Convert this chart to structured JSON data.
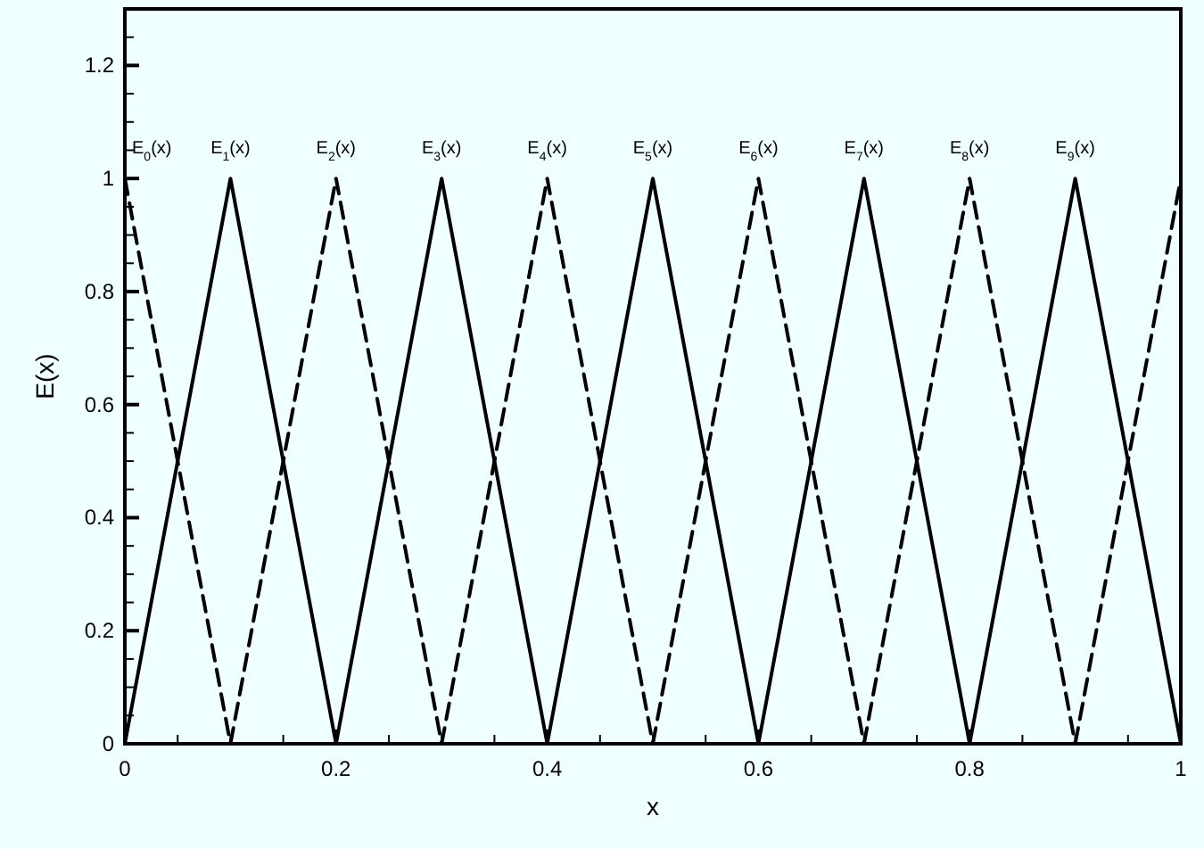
{
  "chart_data": {
    "type": "line",
    "xlabel": "x",
    "ylabel": "E(x)",
    "xlim": [
      0,
      1
    ],
    "ylim": [
      0,
      1.3
    ],
    "xticks": [
      0,
      {
        "value": 0.05,
        "label": null
      },
      0.2,
      {
        "value": 0.1,
        "label": null
      },
      {
        "value": 0.15,
        "label": null
      },
      {
        "value": 0.25,
        "label": null
      },
      {
        "value": 0.3,
        "label": null
      },
      {
        "value": 0.35,
        "label": null
      },
      0.4,
      {
        "value": 0.45,
        "label": null
      },
      {
        "value": 0.5,
        "label": null
      },
      {
        "value": 0.55,
        "label": null
      },
      0.6,
      {
        "value": 0.65,
        "label": null
      },
      {
        "value": 0.7,
        "label": null
      },
      {
        "value": 0.75,
        "label": null
      },
      0.8,
      {
        "value": 0.85,
        "label": null
      },
      {
        "value": 0.9,
        "label": null
      },
      {
        "value": 0.95,
        "label": null
      },
      1
    ],
    "yticks": [
      0,
      {
        "value": 0.05,
        "label": null
      },
      {
        "value": 0.1,
        "label": null
      },
      {
        "value": 0.15,
        "label": null
      },
      0.2,
      {
        "value": 0.25,
        "label": null
      },
      {
        "value": 0.3,
        "label": null
      },
      {
        "value": 0.35,
        "label": null
      },
      0.4,
      {
        "value": 0.45,
        "label": null
      },
      {
        "value": 0.5,
        "label": null
      },
      {
        "value": 0.55,
        "label": null
      },
      0.6,
      {
        "value": 0.65,
        "label": null
      },
      {
        "value": 0.7,
        "label": null
      },
      {
        "value": 0.75,
        "label": null
      },
      0.8,
      {
        "value": 0.85,
        "label": null
      },
      {
        "value": 0.9,
        "label": null
      },
      {
        "value": 0.95,
        "label": null
      },
      1,
      {
        "value": 1.05,
        "label": null
      },
      {
        "value": 1.1,
        "label": null
      },
      {
        "value": 1.15,
        "label": null
      },
      1.2,
      {
        "value": 1.25,
        "label": null
      }
    ],
    "grid": false,
    "marker": "none",
    "series": [
      {
        "name": "E$_{0}$(x)",
        "color": "#000000",
        "line_style": "dashed",
        "x": [
          0,
          0.1
        ],
        "values": [
          1,
          0
        ]
      },
      {
        "name": "E$_{1}$(x)",
        "color": "#000000",
        "line_style": "solid",
        "x": [
          0,
          0.1,
          0.2
        ],
        "values": [
          0,
          1,
          0
        ]
      },
      {
        "name": "E$_{2}$(x)",
        "color": "#000000",
        "line_style": "dashed",
        "x": [
          0.1,
          0.2,
          0.3
        ],
        "values": [
          0,
          1,
          0
        ]
      },
      {
        "name": "E$_{3}$(x)",
        "color": "#000000",
        "line_style": "solid",
        "x": [
          0.2,
          0.3,
          0.4
        ],
        "values": [
          0,
          1,
          0
        ]
      },
      {
        "name": "E$_{4}$(x)",
        "color": "#000000",
        "line_style": "dashed",
        "x": [
          0.3,
          0.4,
          0.5
        ],
        "values": [
          0,
          1,
          0
        ]
      },
      {
        "name": "E$_{5}$(x)",
        "color": "#000000",
        "line_style": "solid",
        "x": [
          0.4,
          0.5,
          0.6
        ],
        "values": [
          0,
          1,
          0
        ]
      },
      {
        "name": "E$_{6}$(x)",
        "color": "#000000",
        "line_style": "dashed",
        "x": [
          0.5,
          0.6,
          0.7
        ],
        "values": [
          0,
          1,
          0
        ]
      },
      {
        "name": "E$_{7}$(x)",
        "color": "#000000",
        "line_style": "solid",
        "x": [
          0.6,
          0.7,
          0.8
        ],
        "values": [
          0,
          1,
          0
        ]
      },
      {
        "name": "E$_{8}$(x)",
        "color": "#000000",
        "line_style": "dashed",
        "x": [
          0.7,
          0.8,
          0.9
        ],
        "values": [
          0,
          1,
          0
        ]
      },
      {
        "name": "E$_{9}$(x)",
        "color": "#000000",
        "line_style": "solid",
        "x": [
          0.8,
          0.9,
          1
        ],
        "values": [
          0,
          1,
          0
        ]
      },
      {
        "color": "#000000",
        "line_style": "dashed",
        "x": [
          0.9,
          1
        ],
        "values": [
          0,
          1
        ]
      }
    ]
  }
}
